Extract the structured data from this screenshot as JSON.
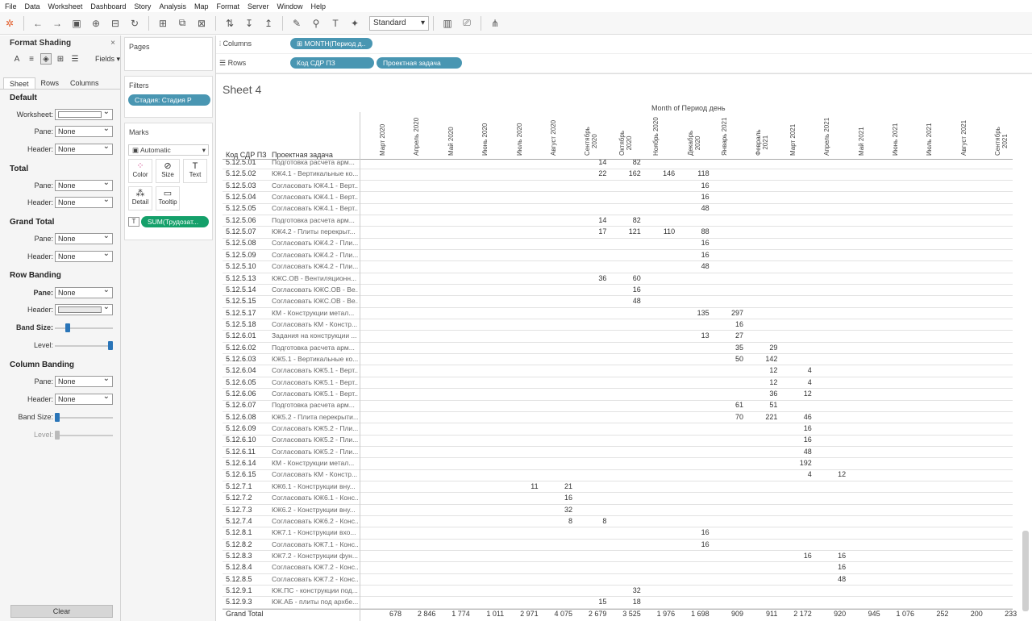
{
  "menu": [
    "File",
    "Data",
    "Worksheet",
    "Dashboard",
    "Story",
    "Analysis",
    "Map",
    "Format",
    "Server",
    "Window",
    "Help"
  ],
  "toolbar": {
    "fit": "Standard"
  },
  "format_panel": {
    "title": "Format Shading",
    "fields_label": "Fields",
    "tabs": [
      "Sheet",
      "Rows",
      "Columns"
    ],
    "default": {
      "title": "Default",
      "worksheet": "Worksheet:",
      "pane": "Pane:",
      "pane_val": "None",
      "header": "Header:",
      "header_val": "None"
    },
    "total": {
      "title": "Total",
      "pane": "Pane:",
      "pane_val": "None",
      "header": "Header:",
      "header_val": "None"
    },
    "grand_total": {
      "title": "Grand Total",
      "pane": "Pane:",
      "pane_val": "None",
      "header": "Header:",
      "header_val": "None"
    },
    "row_banding": {
      "title": "Row Banding",
      "pane": "Pane:",
      "pane_val": "None",
      "header": "Header:",
      "band_size": "Band Size:",
      "level": "Level:",
      "band_size_level": 0.2,
      "level_level": 1.0
    },
    "column_banding": {
      "title": "Column Banding",
      "pane": "Pane:",
      "pane_val": "None",
      "header": "Header:",
      "header_val": "None",
      "band_size": "Band Size:",
      "level": "Level:",
      "band_size_level": 0.0,
      "level_level": 0.0
    },
    "clear": "Clear"
  },
  "cards": {
    "pages": "Pages",
    "filters": "Filters",
    "filter_pill": "Стадия: Стадия Р",
    "marks": "Marks",
    "mark_type": "Automatic",
    "color": "Color",
    "size": "Size",
    "text": "Text",
    "detail": "Detail",
    "tooltip": "Tooltip",
    "sum_pill": "SUM(Трудозат..."
  },
  "shelves": {
    "columns": "Columns",
    "rows": "Rows",
    "col_pill": "MONTH(Период д..",
    "row_pill1": "Код СДР ПЗ",
    "row_pill2": "Проектная задача"
  },
  "sheet": {
    "title": "Sheet 4",
    "super_header": "Month of Период день",
    "row_header1": "Код СДР ПЗ",
    "row_header2": "Проектная задача",
    "months": [
      "Март 2020",
      "Апрель 2020",
      "Май 2020",
      "Июнь 2020",
      "Июль 2020",
      "Август 2020",
      "Сентябрь\n2020",
      "Октябрь\n2020",
      "Ноябрь 2020",
      "Декабрь\n2020",
      "Январь 2021",
      "Февраль\n2021",
      "Март 2021",
      "Апрель 2021",
      "Май 2021",
      "Июнь 2021",
      "Июль 2021",
      "Август 2021",
      "Сентябрь\n2021"
    ],
    "rows": [
      {
        "code": "5.12.5.01",
        "task": "Подготовка расчета арм...",
        "vals": {
          "6": "14",
          "7": "82"
        }
      },
      {
        "code": "5.12.5.02",
        "task": "КЖ4.1 - Вертикальные ко...",
        "vals": {
          "6": "22",
          "7": "162",
          "8": "146",
          "9": "118"
        }
      },
      {
        "code": "5.12.5.03",
        "task": "Согласовать КЖ4.1 - Верт...",
        "vals": {
          "9": "16"
        }
      },
      {
        "code": "5.12.5.04",
        "task": "Согласовать КЖ4.1 - Верт...",
        "vals": {
          "9": "16"
        }
      },
      {
        "code": "5.12.5.05",
        "task": "Согласовать КЖ4.1 - Верт...",
        "vals": {
          "9": "48"
        }
      },
      {
        "code": "5.12.5.06",
        "task": "Подготовка расчета арм...",
        "vals": {
          "6": "14",
          "7": "82"
        }
      },
      {
        "code": "5.12.5.07",
        "task": "КЖ4.2 - Плиты перекрыт...",
        "vals": {
          "6": "17",
          "7": "121",
          "8": "110",
          "9": "88"
        }
      },
      {
        "code": "5.12.5.08",
        "task": "Согласовать КЖ4.2 - Пли...",
        "vals": {
          "9": "16"
        }
      },
      {
        "code": "5.12.5.09",
        "task": "Согласовать КЖ4.2 - Пли...",
        "vals": {
          "9": "16"
        }
      },
      {
        "code": "5.12.5.10",
        "task": "Согласовать КЖ4.2 - Пли...",
        "vals": {
          "9": "48"
        }
      },
      {
        "code": "5.12.5.13",
        "task": "КЖС.ОВ - Вентиляционн...",
        "vals": {
          "6": "36",
          "7": "60"
        }
      },
      {
        "code": "5.12.5.14",
        "task": "Согласовать КЖС.ОВ - Ве...",
        "vals": {
          "7": "16"
        }
      },
      {
        "code": "5.12.5.15",
        "task": "Согласовать КЖС.ОВ - Ве...",
        "vals": {
          "7": "48"
        }
      },
      {
        "code": "5.12.5.17",
        "task": "КМ - Конструкции метал...",
        "vals": {
          "9": "135",
          "10": "297"
        }
      },
      {
        "code": "5.12.5.18",
        "task": "Согласовать КМ - Констр...",
        "vals": {
          "10": "16"
        }
      },
      {
        "code": "5.12.6.01",
        "task": "Задания на конструкции ...",
        "vals": {
          "9": "13",
          "10": "27"
        }
      },
      {
        "code": "5.12.6.02",
        "task": "Подготовка расчета арм...",
        "vals": {
          "10": "35",
          "11": "29"
        }
      },
      {
        "code": "5.12.6.03",
        "task": "КЖ5.1 - Вертикальные ко...",
        "vals": {
          "10": "50",
          "11": "142"
        }
      },
      {
        "code": "5.12.6.04",
        "task": "Согласовать КЖ5.1 - Верт...",
        "vals": {
          "11": "12",
          "12": "4"
        }
      },
      {
        "code": "5.12.6.05",
        "task": "Согласовать КЖ5.1 - Верт...",
        "vals": {
          "11": "12",
          "12": "4"
        }
      },
      {
        "code": "5.12.6.06",
        "task": "Согласовать КЖ5.1 - Верт...",
        "vals": {
          "11": "36",
          "12": "12"
        }
      },
      {
        "code": "5.12.6.07",
        "task": "Подготовка расчета арм...",
        "vals": {
          "10": "61",
          "11": "51"
        }
      },
      {
        "code": "5.12.6.08",
        "task": "КЖ5.2 - Плита перекрыти...",
        "vals": {
          "10": "70",
          "11": "221",
          "12": "46"
        }
      },
      {
        "code": "5.12.6.09",
        "task": "Согласовать КЖ5.2 - Пли...",
        "vals": {
          "12": "16"
        }
      },
      {
        "code": "5.12.6.10",
        "task": "Согласовать КЖ5.2 - Пли...",
        "vals": {
          "12": "16"
        }
      },
      {
        "code": "5.12.6.11",
        "task": "Согласовать КЖ5.2 - Пли...",
        "vals": {
          "12": "48"
        }
      },
      {
        "code": "5.12.6.14",
        "task": "КМ - Конструкции метал...",
        "vals": {
          "12": "192"
        }
      },
      {
        "code": "5.12.6.15",
        "task": "Согласовать КМ - Констр...",
        "vals": {
          "12": "4",
          "13": "12"
        }
      },
      {
        "code": "5.12.7.1",
        "task": "КЖ6.1 - Конструкции вну...",
        "vals": {
          "4": "11",
          "5": "21"
        }
      },
      {
        "code": "5.12.7.2",
        "task": "Согласовать КЖ6.1 - Конс...",
        "vals": {
          "5": "16"
        }
      },
      {
        "code": "5.12.7.3",
        "task": "КЖ6.2 - Конструкции вну...",
        "vals": {
          "5": "32"
        }
      },
      {
        "code": "5.12.7.4",
        "task": "Согласовать КЖ6.2 - Конс...",
        "vals": {
          "5": "8",
          "6": "8"
        }
      },
      {
        "code": "5.12.8.1",
        "task": "КЖ7.1 - Конструкции вхо...",
        "vals": {
          "9": "16"
        }
      },
      {
        "code": "5.12.8.2",
        "task": "Согласовать КЖ7.1 - Конс...",
        "vals": {
          "9": "16"
        }
      },
      {
        "code": "5.12.8.3",
        "task": "КЖ7.2 - Конструкции фун...",
        "vals": {
          "12": "16",
          "13": "16"
        }
      },
      {
        "code": "5.12.8.4",
        "task": "Согласовать КЖ7.2 - Конс...",
        "vals": {
          "13": "16"
        }
      },
      {
        "code": "5.12.8.5",
        "task": "Согласовать КЖ7.2 - Конс...",
        "vals": {
          "13": "48"
        }
      },
      {
        "code": "5.12.9.1",
        "task": "КЖ.ПС - конструкции под...",
        "vals": {
          "7": "32"
        }
      },
      {
        "code": "5.12.9.3",
        "task": "КЖ.АБ - плиты под архбе...",
        "vals": {
          "6": "15",
          "7": "18"
        }
      }
    ],
    "grand_total_label": "Grand Total",
    "grand_totals": [
      "678",
      "2 846",
      "1 774",
      "1 011",
      "2 971",
      "4 075",
      "2 679",
      "3 525",
      "1 976",
      "1 698",
      "909",
      "911",
      "2 172",
      "920",
      "945",
      "1 076",
      "252",
      "200",
      "233"
    ]
  }
}
